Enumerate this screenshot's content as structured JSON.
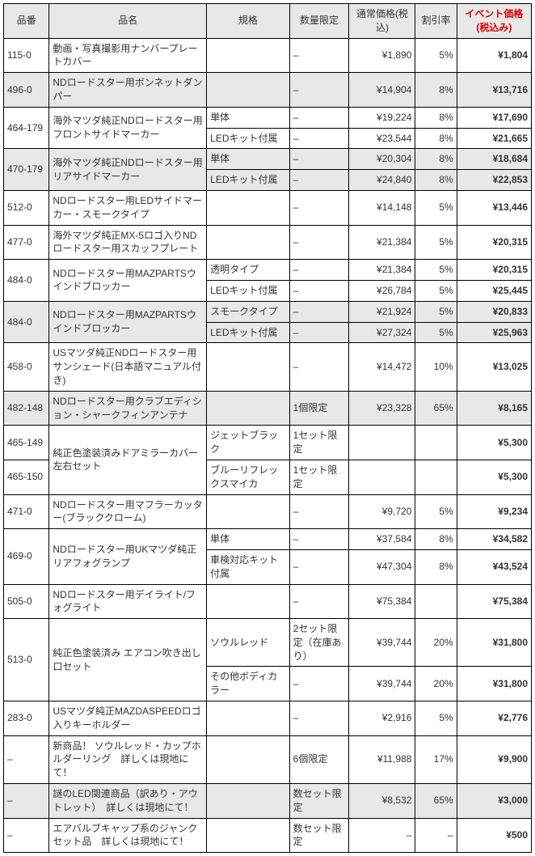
{
  "columns": {
    "c1": "品番",
    "c2": "品名",
    "c3": "規格",
    "c4": "数量限定",
    "c5": "通常価格(税込)",
    "c6": "割引率",
    "c7": "イベント価格(税込み)"
  },
  "rows": [
    {
      "no": "115-0",
      "name": "動画・写真撮影用ナンバープレートカバー",
      "spec": "",
      "qty": "–",
      "price": "¥1,890",
      "disc": "5%",
      "event": "¥1,804",
      "shade": false
    },
    {
      "no": "496-0",
      "name": "NDロードスター用ボンネットダンパー",
      "spec": "",
      "qty": "–",
      "price": "¥14,904",
      "disc": "8%",
      "event": "¥13,716",
      "shade": true
    },
    {
      "group": "464-179",
      "gname": "海外マツダ純正NDロードスター用フロントサイドマーカー",
      "sub": [
        {
          "spec": "単体",
          "qty": "–",
          "price": "¥19,224",
          "disc": "8%",
          "event": "¥17,690",
          "shade": false
        },
        {
          "spec": "LEDキット付属",
          "qty": "–",
          "price": "¥23,544",
          "disc": "8%",
          "event": "¥21,665",
          "shade": false
        }
      ]
    },
    {
      "group": "470-179",
      "gname": "海外マツダ純正NDロードスター用リアサイドマーカー",
      "sub": [
        {
          "spec": "単体",
          "qty": "–",
          "price": "¥20,304",
          "disc": "8%",
          "event": "¥18,684",
          "shade": true
        },
        {
          "spec": "LEDキット付属",
          "qty": "–",
          "price": "¥24,840",
          "disc": "8%",
          "event": "¥22,853",
          "shade": true
        }
      ]
    },
    {
      "no": "512-0",
      "name": "NDロードスター用LEDサイドマーカー・スモークタイプ",
      "spec": "",
      "qty": "–",
      "price": "¥14,148",
      "disc": "5%",
      "event": "¥13,446",
      "shade": false
    },
    {
      "no": "477-0",
      "name": "海外マツダ純正MX-5ロゴ入りNDロードスター用スカッフプレート",
      "spec": "",
      "qty": "–",
      "price": "¥21,384",
      "disc": "5%",
      "event": "¥20,315",
      "shade": false
    },
    {
      "group": "484-0",
      "gname": "NDロードスター用MAZPARTSウインドブロッカー",
      "sub": [
        {
          "spec": "透明タイプ",
          "qty": "–",
          "price": "¥21,384",
          "disc": "5%",
          "event": "¥20,315",
          "shade": false
        },
        {
          "spec": "LEDキット付属",
          "qty": "–",
          "price": "¥26,784",
          "disc": "5%",
          "event": "¥25,445",
          "shade": false
        }
      ]
    },
    {
      "group": "484-0",
      "gname": "NDロードスター用MAZPARTSウインドブロッカー",
      "sub": [
        {
          "spec": "スモークタイプ",
          "qty": "–",
          "price": "¥21,924",
          "disc": "5%",
          "event": "¥20,833",
          "shade": true
        },
        {
          "spec": "LEDキット付属",
          "qty": "–",
          "price": "¥27,324",
          "disc": "5%",
          "event": "¥25,963",
          "shade": true
        }
      ]
    },
    {
      "no": "458-0",
      "name": "USマツダ純正NDロードスター用サンシェード(日本語マニュアル付き)",
      "spec": "",
      "qty": "–",
      "price": "¥14,472",
      "disc": "10%",
      "event": "¥13,025",
      "shade": false
    },
    {
      "no": "482-148",
      "name": " NDロードスター用クラブエディション・シャークフィンアンテナ",
      "spec": "",
      "qty": "1個限定",
      "price": "¥23,328",
      "disc": "65%",
      "event": "¥8,165",
      "shade": true
    },
    {
      "mirrorGroup": true,
      "gname": "純正色塗装済みドアミラーカバー左右セット",
      "sub": [
        {
          "no": "465-149",
          "spec": "ジェットブラック",
          "qty": "1セット限定",
          "price": "",
          "disc": "",
          "event": "¥5,300",
          "shade": false
        },
        {
          "no": "465-150",
          "spec": "ブルーリフレックスマイカ",
          "qty": "1セット限定",
          "price": "",
          "disc": "",
          "event": "¥5,300",
          "shade": false
        }
      ]
    },
    {
      "no": "471-0",
      "name": "NDロードスター用マフラーカッター(ブラッククローム)",
      "spec": "",
      "qty": "–",
      "price": "¥9,720",
      "disc": "5%",
      "event": "¥9,234",
      "shade": false
    },
    {
      "group": "469-0",
      "gname": "NDロードスター用UKマツダ純正リアフォグランプ",
      "sub": [
        {
          "spec": "単体",
          "qty": "–",
          "price": "¥37,584",
          "disc": "8%",
          "event": "¥34,582",
          "shade": false
        },
        {
          "spec": "車検対応キット付属",
          "qty": "–",
          "price": "¥47,304",
          "disc": "8%",
          "event": "¥43,524",
          "shade": false
        }
      ]
    },
    {
      "no": "505-0",
      "name": "NDロードスター用デイライト/フォグライト",
      "spec": "",
      "qty": "–",
      "price": "¥75,384",
      "disc": "",
      "event": "¥75,384",
      "shade": false
    },
    {
      "group": "513-0",
      "gname": "純正色塗装済み エアコン吹き出し口セット",
      "sub": [
        {
          "spec": "ソウルレッド",
          "qty": "2セット限定（在庫あり）",
          "price": "¥39,744",
          "disc": "20%",
          "event": "¥31,800",
          "shade": false
        },
        {
          "spec": "その他ボディカラー",
          "qty": "–",
          "price": "¥39,744",
          "disc": "20%",
          "event": "¥31,800",
          "shade": false
        }
      ]
    },
    {
      "no": "283-0",
      "name": "USマツダ純正MAZDASPEEDロゴ入りキーホルダー",
      "spec": "",
      "qty": "–",
      "price": "¥2,916",
      "disc": "5%",
      "event": "¥2,776",
      "shade": false
    },
    {
      "no": "–",
      "name": "新商品！ ソウルレッド・カップホルダーリング　詳しくは現地にて！",
      "spec": "",
      "qty": "6個限定",
      "price": "¥11,988",
      "disc": "17%",
      "event": "¥9,900",
      "shade": false
    },
    {
      "no": "–",
      "name": "謎のLED関連商品（訳あり・アウトレット）　詳しくは現地にて！",
      "spec": "",
      "qty": "数セット限定",
      "price": "¥8,532",
      "disc": "65%",
      "event": "¥3,000",
      "shade": true
    },
    {
      "no": "–",
      "name": "エアバルブキャップ系のジャンクセット品　詳しくは現地にて！",
      "spec": "",
      "qty": "数セット限定",
      "price": "–",
      "disc": "–",
      "event": "¥500",
      "shade": false
    }
  ]
}
